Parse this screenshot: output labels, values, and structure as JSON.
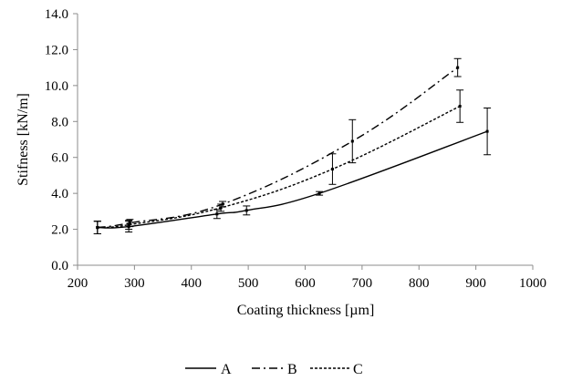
{
  "chart_data": {
    "type": "line",
    "title": "",
    "xlabel": "Coating thickness [µm]",
    "ylabel": "Stifness [kN/m]",
    "xlim": [
      200,
      1000
    ],
    "ylim": [
      0,
      14
    ],
    "x_ticks": [
      200,
      300,
      400,
      500,
      600,
      700,
      800,
      900,
      1000
    ],
    "y_ticks": [
      0,
      2,
      4,
      6,
      8,
      10,
      12,
      14
    ],
    "x_tick_labels": [
      "200",
      "300",
      "400",
      "500",
      "600",
      "700",
      "800",
      "900",
      "1000"
    ],
    "y_tick_labels": [
      "0.0",
      "2.0",
      "4.0",
      "6.0",
      "8.0",
      "10.0",
      "12.0",
      "14.0"
    ],
    "grid": false,
    "legend_position": "bottom",
    "series": [
      {
        "name": "A",
        "line_style": "solid",
        "points": [
          {
            "x": 235,
            "y": 2.1,
            "err": 0.35
          },
          {
            "x": 290,
            "y": 2.15,
            "err": 0.3
          },
          {
            "x": 445,
            "y": 2.85,
            "err": 0.25
          },
          {
            "x": 497,
            "y": 3.05,
            "err": 0.25
          },
          {
            "x": 625,
            "y": 4.0,
            "err": 0.1
          },
          {
            "x": 920,
            "y": 7.45,
            "err": 1.3
          }
        ]
      },
      {
        "name": "B",
        "line_style": "dash-dot",
        "points": [
          {
            "x": 235,
            "y": 2.1,
            "err": 0.35
          },
          {
            "x": 292,
            "y": 2.35,
            "err": 0.2
          },
          {
            "x": 455,
            "y": 3.4,
            "err": 0.15
          },
          {
            "x": 683,
            "y": 6.9,
            "err": 1.2
          },
          {
            "x": 868,
            "y": 11.0,
            "err": 0.5
          }
        ]
      },
      {
        "name": "C",
        "line_style": "dotted",
        "points": [
          {
            "x": 235,
            "y": 2.1,
            "err": 0.35
          },
          {
            "x": 290,
            "y": 2.25,
            "err": 0.25
          },
          {
            "x": 452,
            "y": 3.2,
            "err": 0.2
          },
          {
            "x": 648,
            "y": 5.35,
            "err": 0.85
          },
          {
            "x": 872,
            "y": 8.85,
            "err": 0.9
          }
        ]
      }
    ]
  }
}
